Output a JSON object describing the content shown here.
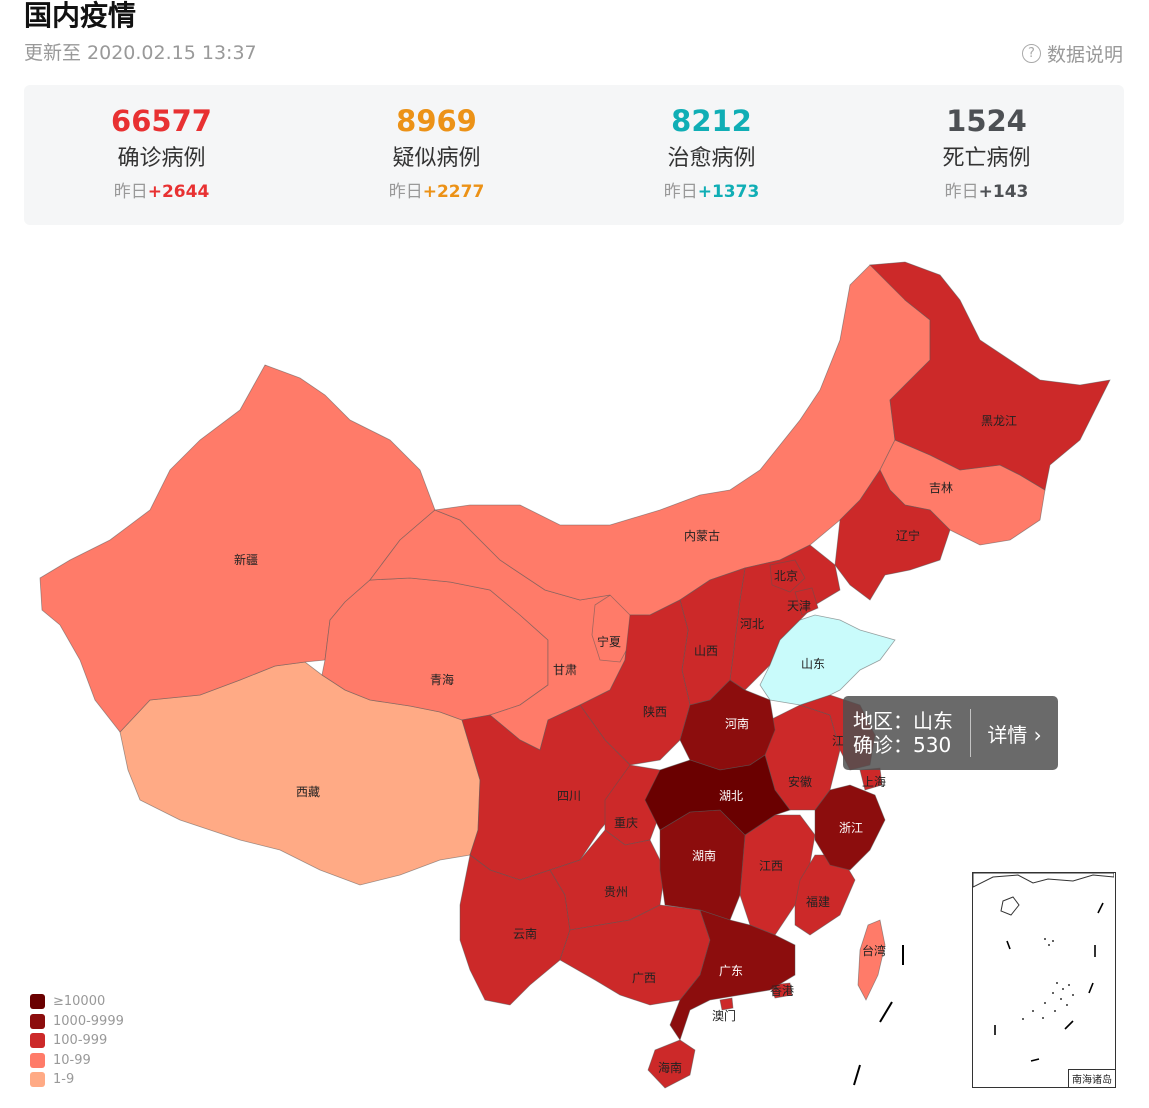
{
  "header": {
    "title": "国内疫情",
    "update_time": "更新至 2020.02.15 13:37",
    "data_note": "数据说明"
  },
  "stats": [
    {
      "number": "66577",
      "label": "确诊病例",
      "change_prefix": "昨日",
      "change": "+2644",
      "color": "#e83132"
    },
    {
      "number": "8969",
      "label": "疑似病例",
      "change_prefix": "昨日",
      "change": "+2277",
      "color": "#ec9217"
    },
    {
      "number": "8212",
      "label": "治愈病例",
      "change_prefix": "昨日",
      "change": "+1373",
      "color": "#10aeb5"
    },
    {
      "number": "1524",
      "label": "死亡病例",
      "change_prefix": "昨日",
      "change": "+143",
      "color": "#4d5054"
    }
  ],
  "legend": [
    {
      "label": "≥10000",
      "color": "#6a0000"
    },
    {
      "label": "1000-9999",
      "color": "#8c0d0d"
    },
    {
      "label": "100-999",
      "color": "#cc2929"
    },
    {
      "label": "10-99",
      "color": "#ff7b69"
    },
    {
      "label": "1-9",
      "color": "#ffaa85"
    }
  ],
  "tooltip": {
    "region_line": "地区：山东",
    "confirmed_line": "确诊：530",
    "detail": "详情 ›",
    "highlight_color": "#c9fbfb"
  },
  "provinces": {
    "xinjiang": "新疆",
    "xizang": "西藏",
    "qinghai": "青海",
    "gansu": "甘肃",
    "ningxia": "宁夏",
    "neimenggu": "内蒙古",
    "heilongjiang": "黑龙江",
    "jilin": "吉林",
    "liaoning": "辽宁",
    "beijing": "北京",
    "tianjin": "天津",
    "hebei": "河北",
    "shanxi": "山西",
    "shandong": "山东",
    "shaanxi": "陕西",
    "henan": "河南",
    "sichuan": "四川",
    "chongqing": "重庆",
    "hubei": "湖北",
    "anhui": "安徽",
    "jiangsu": "江",
    "shanghai": "上海",
    "zhejiang": "浙江",
    "hunan": "湖南",
    "jiangxi": "江西",
    "guizhou": "贵州",
    "yunnan": "云南",
    "guangxi": "广西",
    "guangdong": "广东",
    "fujian": "福建",
    "taiwan": "台湾",
    "xianggang": "香港",
    "aomen": "澳门",
    "hainan": "海南"
  },
  "inset_label": "南海诸岛"
}
